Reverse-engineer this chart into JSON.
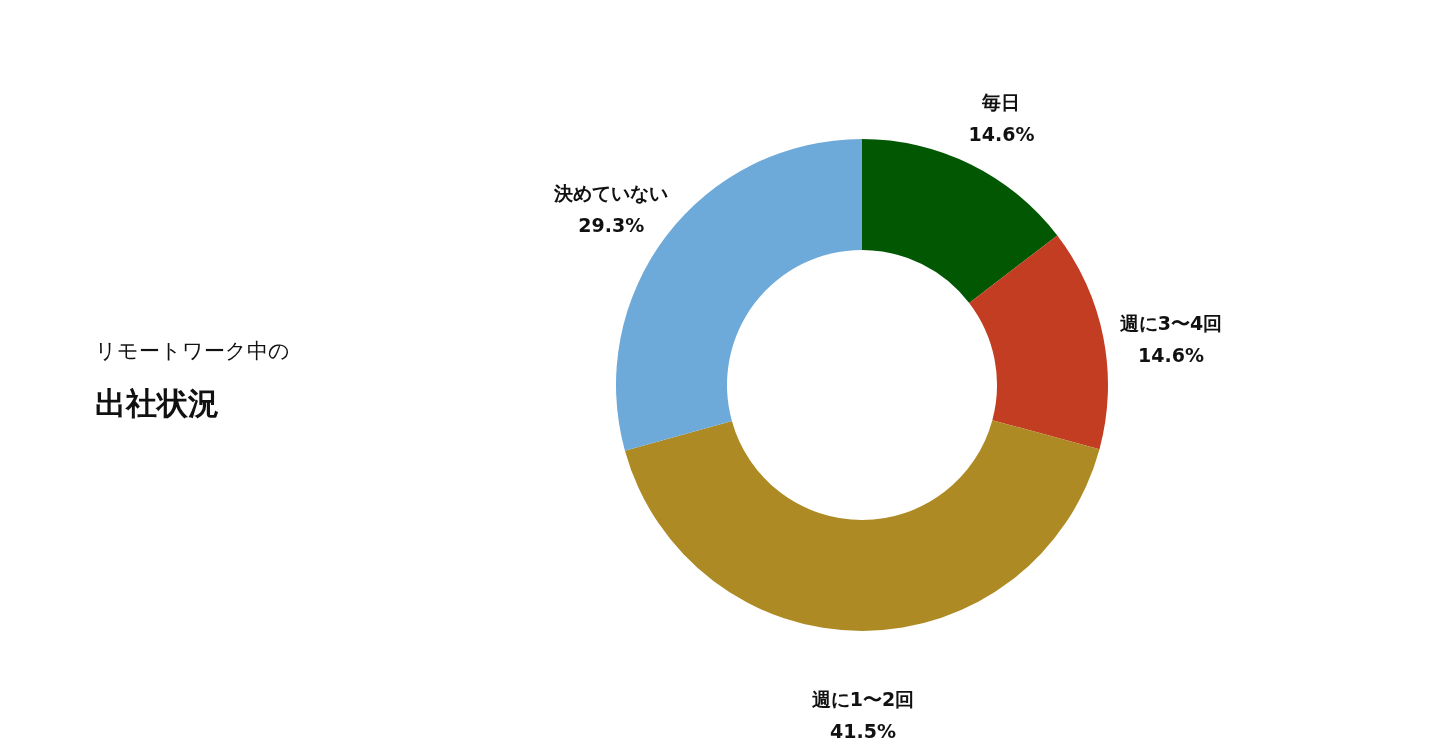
{
  "chart_data": {
    "type": "donut",
    "title": "出社状況",
    "subtitle": "リモートワーク中の",
    "categories": [
      "毎日",
      "週に3〜4回",
      "週に1〜2回",
      "決めていない"
    ],
    "values": [
      14.6,
      14.6,
      41.5,
      29.3
    ],
    "value_labels": [
      "14.6%",
      "14.6%",
      "41.5%",
      "29.3%"
    ],
    "colors": [
      "#025802",
      "#c33d22",
      "#ae8a24",
      "#6eaad9"
    ]
  }
}
